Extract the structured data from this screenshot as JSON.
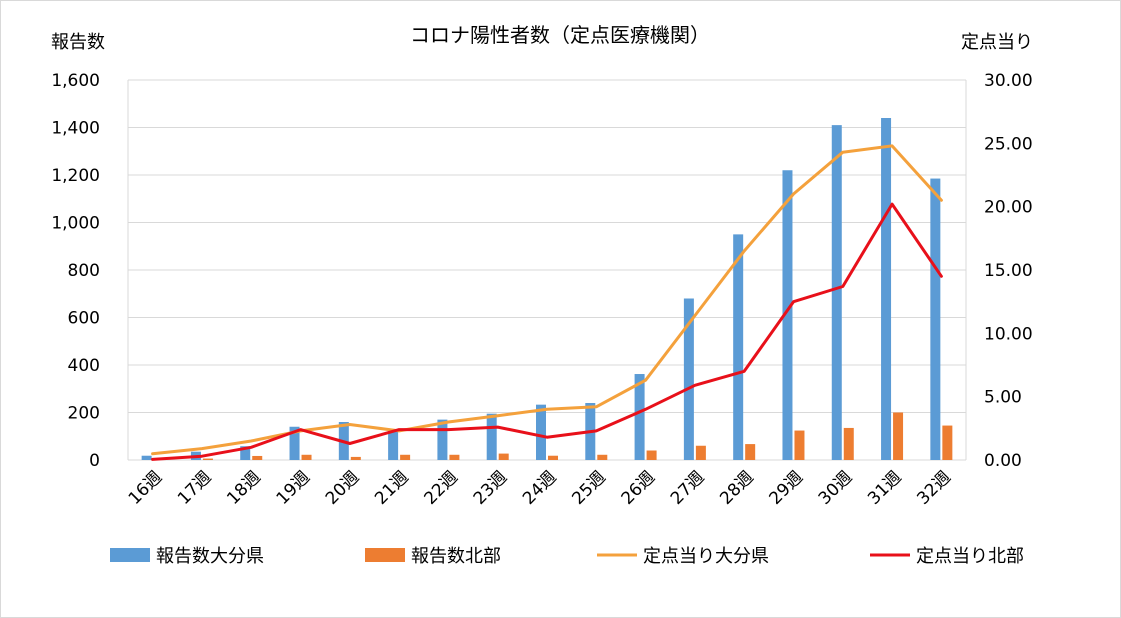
{
  "chart_data": {
    "type": "bar+line",
    "title": "コロナ陽性者数（定点医療機関）",
    "ylabel_left": "報告数",
    "ylabel_right": "定点当り",
    "categories": [
      "16週",
      "17週",
      "18週",
      "19週",
      "20週",
      "21週",
      "22週",
      "23週",
      "24週",
      "25週",
      "26週",
      "27週",
      "28週",
      "29週",
      "30週",
      "31週",
      "32週"
    ],
    "ylim_left": [
      0,
      1600
    ],
    "yticks_left": [
      "0",
      "200",
      "400",
      "600",
      "800",
      "1,000",
      "1,200",
      "1,400",
      "1,600"
    ],
    "ylim_right": [
      0,
      30
    ],
    "yticks_right": [
      "0.00",
      "5.00",
      "10.00",
      "15.00",
      "20.00",
      "25.00",
      "30.00"
    ],
    "grid": true,
    "legend_position": "bottom",
    "bar_series": [
      {
        "name": "報告数大分県",
        "color": "#5b9bd5",
        "values": [
          18,
          35,
          58,
          140,
          160,
          130,
          170,
          195,
          233,
          240,
          362,
          680,
          950,
          1220,
          1410,
          1440,
          1185
        ]
      },
      {
        "name": "報告数北部",
        "color": "#ed7d31",
        "values": [
          2,
          6,
          17,
          22,
          13,
          22,
          22,
          27,
          18,
          22,
          40,
          60,
          67,
          124,
          135,
          200,
          145
        ]
      }
    ],
    "line_series": [
      {
        "name": "定点当り大分県",
        "color": "#f4a13c",
        "values": [
          0.5,
          0.9,
          1.5,
          2.3,
          2.8,
          2.3,
          3.0,
          3.5,
          4.0,
          4.2,
          6.3,
          11.4,
          16.5,
          21.0,
          24.3,
          24.8,
          20.5
        ]
      },
      {
        "name": "定点当り北部",
        "color": "#e8101a",
        "values": [
          0.05,
          0.3,
          1.0,
          2.4,
          1.3,
          2.4,
          2.4,
          2.6,
          1.8,
          2.3,
          4.0,
          5.9,
          7.0,
          12.5,
          13.7,
          20.2,
          14.5
        ]
      }
    ]
  }
}
